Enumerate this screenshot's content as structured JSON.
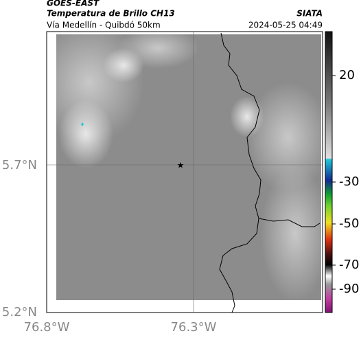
{
  "header": {
    "source": "GOES-EAST",
    "title": "Temperatura de Brillo CH13",
    "agency": "SIATA",
    "subtitle": "Vía Medellín - Quibdó 50km",
    "datetime": "2024-05-25 04:49"
  },
  "map": {
    "lat_labels": [
      "5.7°N",
      "5.2°N"
    ],
    "lon_labels": [
      "76.8°W",
      "76.3°W"
    ]
  },
  "colorbar": {
    "tick_labels": [
      "20",
      "-30",
      "-50",
      "-70",
      "-90"
    ]
  }
}
